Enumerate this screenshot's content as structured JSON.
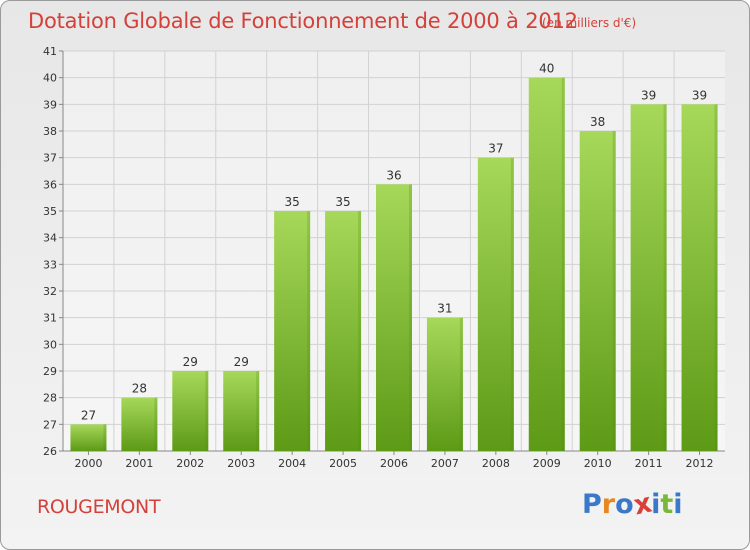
{
  "header": {
    "title": "Dotation Globale de Fonctionnement de 2000 à 2012",
    "unit": "(en milliers d'€)"
  },
  "footer": {
    "commune": "ROUGEMONT",
    "logo_text": "Proxiti",
    "logo_colors": [
      "#3a78c9",
      "#e8871e",
      "#3a78c9",
      "#d9403a",
      "#3a78c9",
      "#7ab83a",
      "#3a78c9"
    ]
  },
  "colors": {
    "bar_top": "#a6d85a",
    "bar_bottom": "#5d9a16",
    "grid": "#d2d2d2",
    "text_red": "#d4403a"
  },
  "chart_data": {
    "type": "bar",
    "title": "Dotation Globale de Fonctionnement de 2000 à 2012",
    "subtitle": "(en milliers d'€)",
    "xlabel": "",
    "ylabel": "",
    "categories": [
      "2000",
      "2001",
      "2002",
      "2003",
      "2004",
      "2005",
      "2006",
      "2007",
      "2008",
      "2009",
      "2010",
      "2011",
      "2012"
    ],
    "values": [
      27,
      28,
      29,
      29,
      35,
      35,
      36,
      31,
      37,
      40,
      38,
      39,
      39
    ],
    "ylim": [
      26,
      41
    ],
    "yticks": [
      26,
      27,
      28,
      29,
      30,
      31,
      32,
      33,
      34,
      35,
      36,
      37,
      38,
      39,
      40,
      41
    ],
    "grid": true,
    "legend": "none"
  }
}
